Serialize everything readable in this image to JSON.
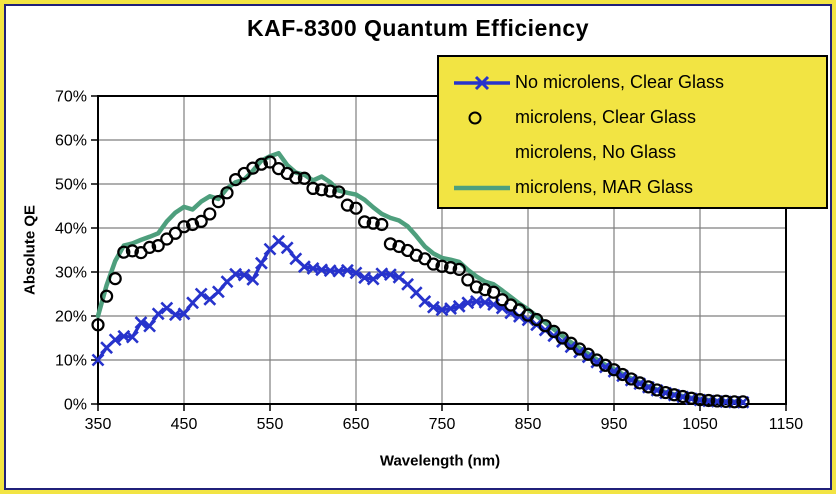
{
  "title": "KAF-8300 Quantum Efficiency",
  "colors": {
    "frame_yellow": "#f2e443",
    "border_navy": "#20207a",
    "plot_border": "#000000",
    "gridline": "#7f7f7f",
    "series_blue": "#2733cc",
    "series_green": "#4e9f7d",
    "series_circle_stroke": "#000000"
  },
  "chart_data": {
    "type": "line",
    "title": "KAF-8300 Quantum Efficiency",
    "xlabel": "Wavelength (nm)",
    "ylabel": "Absolute QE",
    "xlim": [
      350,
      1150
    ],
    "ylim": [
      "0%",
      "70%"
    ],
    "grid": true,
    "legend_position": "top-right",
    "x_ticks": [
      350,
      450,
      550,
      650,
      750,
      850,
      950,
      1050,
      1150
    ],
    "y_ticks": [
      "0%",
      "10%",
      "20%",
      "30%",
      "40%",
      "50%",
      "60%",
      "70%"
    ],
    "x_start": 350,
    "x_step": 10,
    "series": [
      {
        "name": "No microlens, Clear Glass",
        "marker": "x",
        "color": "#2733cc",
        "values": [
          10.0,
          12.8,
          14.6,
          15.4,
          15.2,
          18.5,
          17.7,
          20.5,
          21.8,
          20.3,
          20.5,
          23.0,
          25.0,
          23.8,
          25.5,
          27.8,
          29.5,
          29.3,
          28.3,
          32.0,
          35.2,
          37.0,
          35.5,
          33.0,
          31.2,
          30.8,
          30.5,
          30.3,
          30.2,
          30.4,
          29.8,
          28.7,
          28.4,
          29.6,
          29.4,
          28.8,
          27.2,
          25.3,
          23.3,
          22.0,
          21.4,
          21.7,
          22.2,
          23.0,
          23.3,
          23.1,
          22.6,
          21.8,
          20.7,
          19.9,
          19.1,
          18.0,
          16.8,
          15.5,
          14.2,
          13.0,
          11.8,
          10.7,
          9.5,
          8.4,
          7.4,
          6.4,
          5.4,
          4.6,
          3.8,
          3.1,
          2.5,
          2.0,
          1.6,
          1.2,
          0.9,
          0.7,
          0.6,
          0.5,
          0.4,
          0.4
        ]
      },
      {
        "name": "microlens, Clear Glass",
        "marker": "circle",
        "color": "#000000",
        "values": [
          18.0,
          24.5,
          28.5,
          34.5,
          34.8,
          34.4,
          35.6,
          36.0,
          37.5,
          38.8,
          40.3,
          40.8,
          41.5,
          43.2,
          46.0,
          48.0,
          51.0,
          52.4,
          53.6,
          54.5,
          55.0,
          53.5,
          52.4,
          51.4,
          51.3,
          49.0,
          48.7,
          48.4,
          48.2,
          45.2,
          44.5,
          41.4,
          41.1,
          40.8,
          36.4,
          35.8,
          34.9,
          33.8,
          33.0,
          31.8,
          31.3,
          31.0,
          30.6,
          28.2,
          26.6,
          26.0,
          25.4,
          23.7,
          22.5,
          21.4,
          20.2,
          19.2,
          17.8,
          16.5,
          15.0,
          13.8,
          12.5,
          11.3,
          10.0,
          8.8,
          7.8,
          6.7,
          5.7,
          4.8,
          3.9,
          3.2,
          2.6,
          2.1,
          1.7,
          1.3,
          1.0,
          0.8,
          0.7,
          0.6,
          0.5,
          0.5
        ]
      },
      {
        "name": "microlens, No Glass",
        "marker": "none",
        "color": "#000000",
        "values": []
      },
      {
        "name": "microlens, MAR Glass",
        "marker": "line",
        "color": "#4e9f7d",
        "values": [
          20.0,
          27.0,
          32.5,
          36.0,
          36.5,
          37.3,
          38.0,
          38.8,
          41.5,
          43.5,
          44.8,
          44.2,
          46.0,
          47.2,
          46.6,
          49.0,
          50.4,
          51.0,
          53.0,
          55.3,
          56.3,
          57.0,
          54.3,
          52.6,
          52.1,
          50.8,
          51.7,
          50.4,
          48.5,
          48.0,
          47.6,
          46.4,
          44.7,
          43.2,
          42.3,
          41.7,
          40.4,
          38.2,
          35.8,
          34.2,
          33.2,
          32.8,
          32.3,
          30.5,
          29.0,
          27.8,
          27.2,
          25.8,
          24.3,
          22.8,
          21.5,
          20.0,
          18.5,
          17.0,
          15.5,
          14.0,
          12.7,
          11.4,
          10.1,
          8.9,
          7.9,
          6.8,
          5.8,
          4.9,
          4.0,
          3.3,
          2.7,
          2.2,
          1.8,
          1.4,
          1.1,
          0.9,
          0.7,
          0.6,
          0.5,
          0.4
        ]
      }
    ]
  }
}
